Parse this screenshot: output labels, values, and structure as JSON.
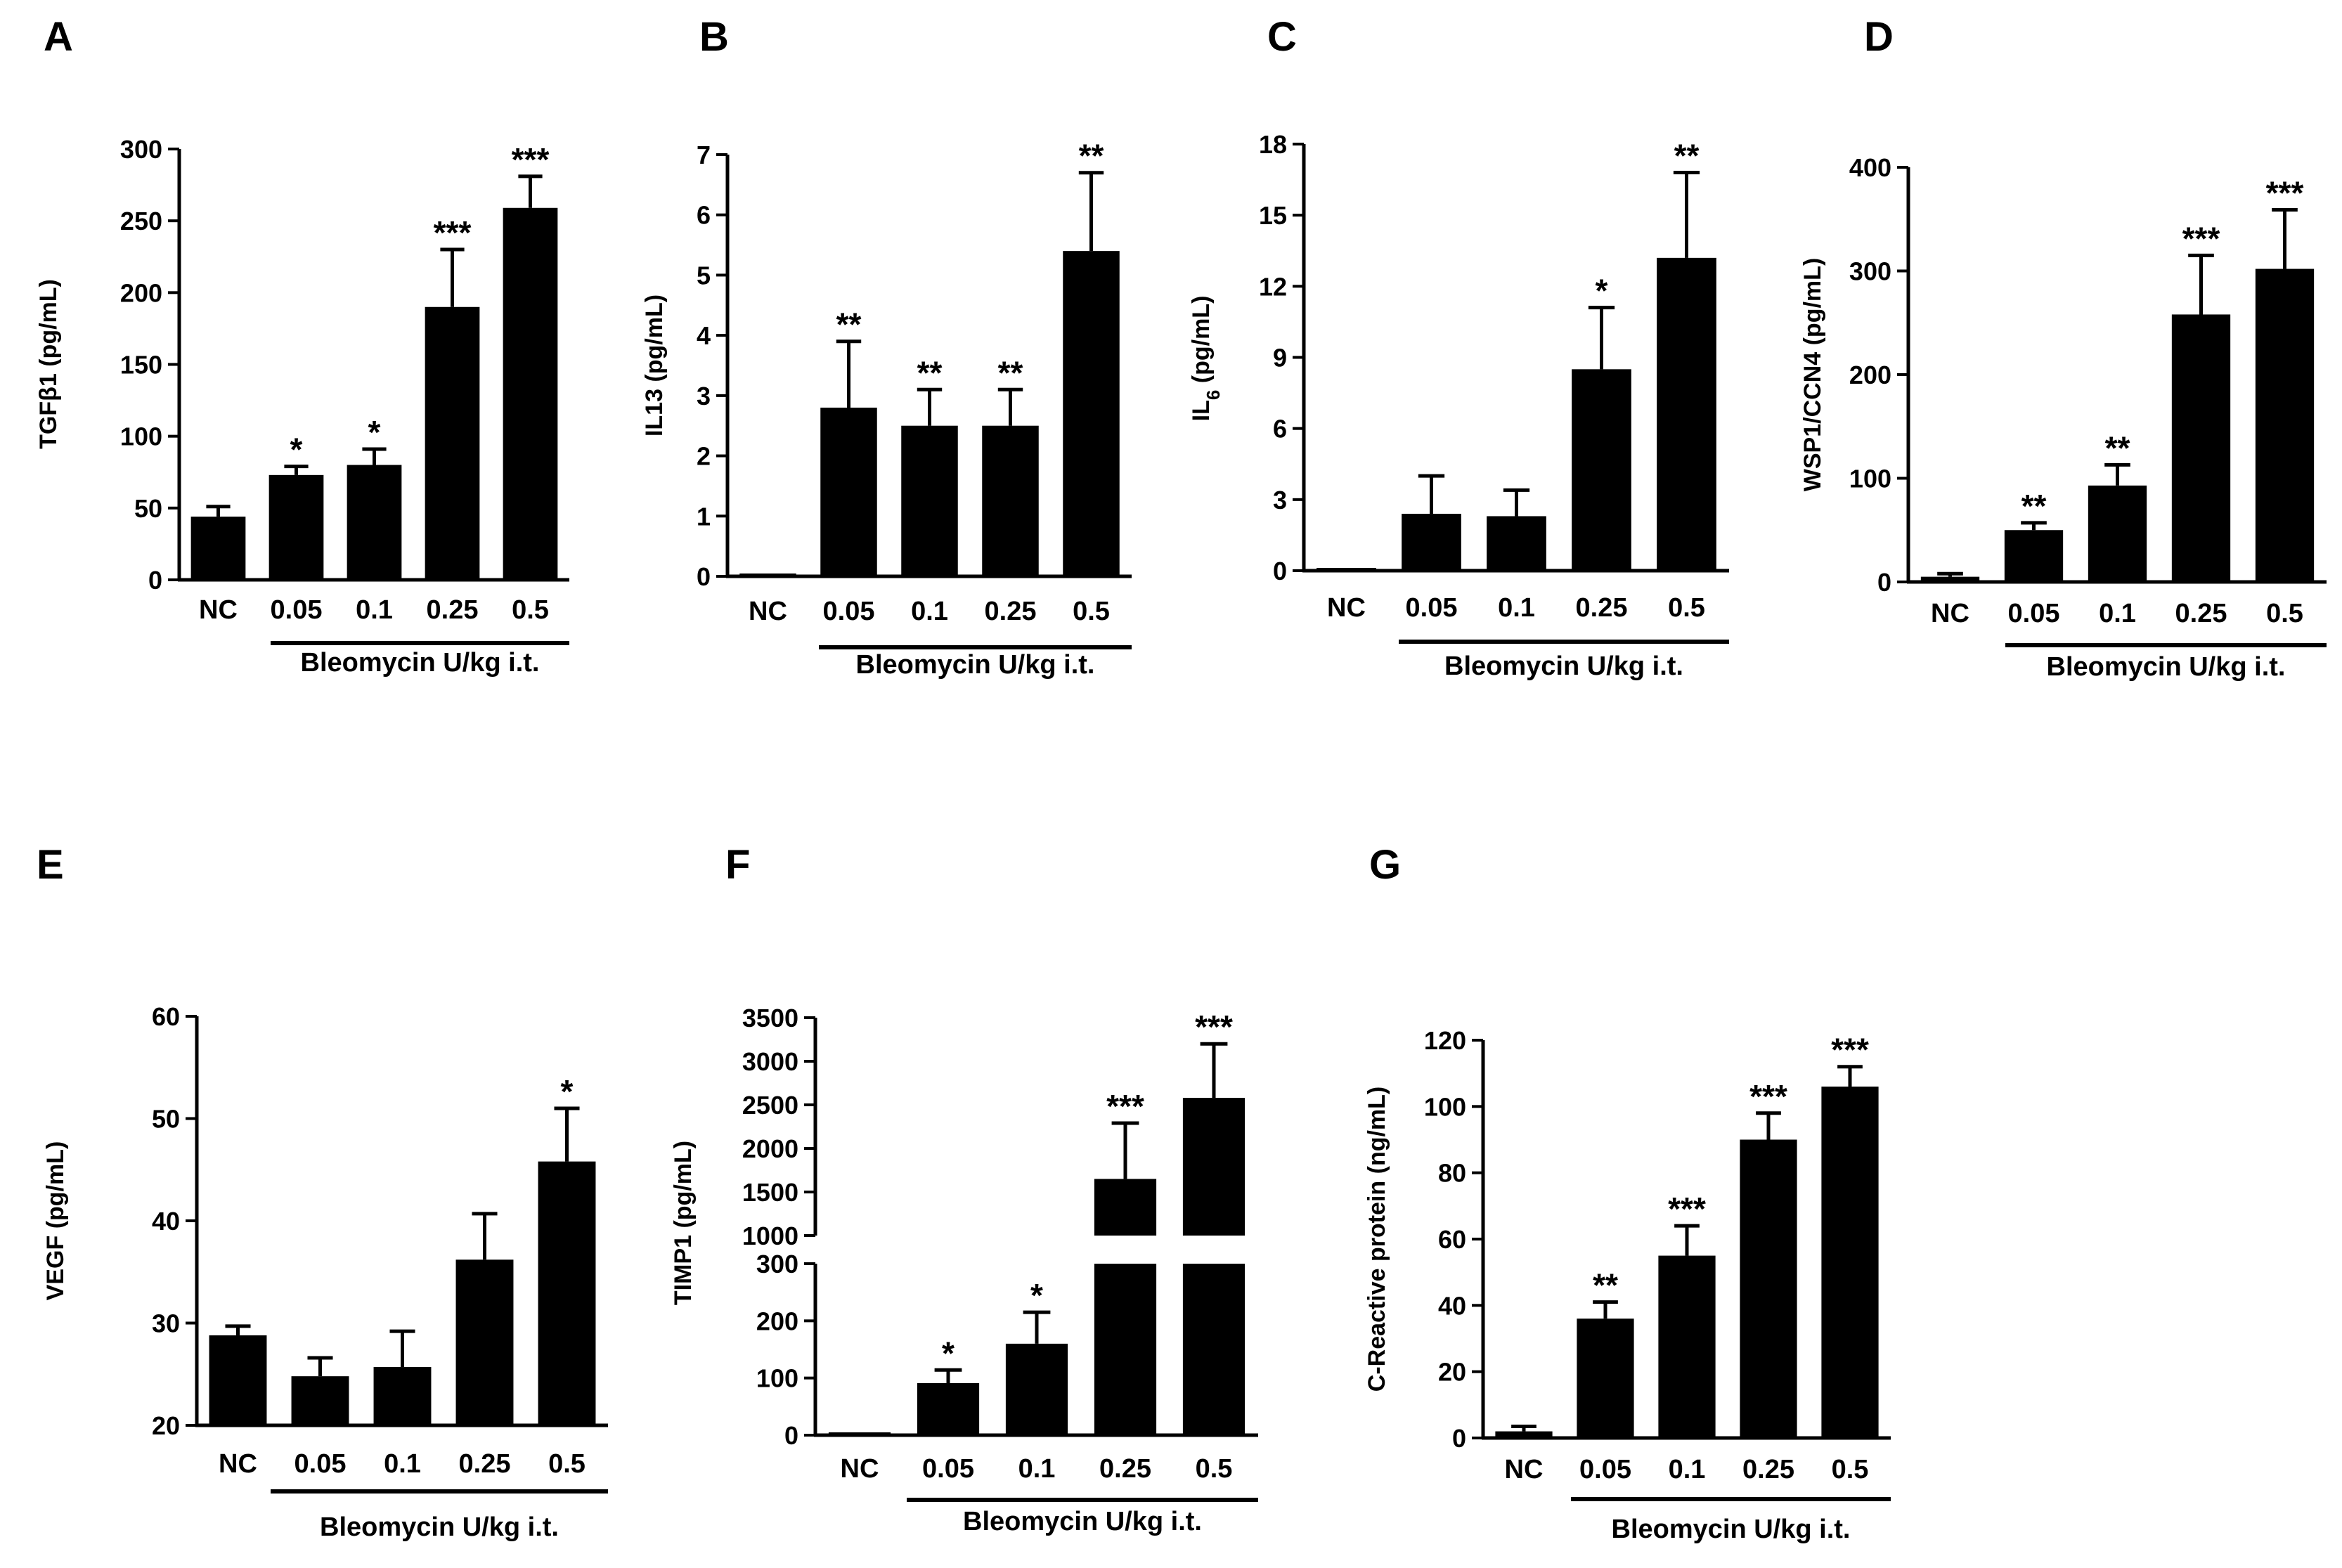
{
  "figure": {
    "bg_color": "#ffffff",
    "bar_color": "#000000"
  },
  "chart_data": [
    {
      "panel": "A",
      "type": "bar",
      "title": "",
      "ylabel": "TGFβ1  (pg/mL)",
      "xlabel": "",
      "group_label": "Bleomycin U/kg i.t.",
      "categories": [
        "NC",
        "0.05",
        "0.1",
        "0.25",
        "0.5"
      ],
      "values": [
        44,
        73,
        80,
        190,
        259
      ],
      "errors": [
        7,
        6,
        11,
        40,
        22
      ],
      "significance": [
        "",
        "*",
        "*",
        "***",
        "***"
      ],
      "ylim": [
        0,
        300
      ],
      "yticks": [
        0,
        50,
        100,
        150,
        200,
        250,
        300
      ],
      "ytick_labels": [
        "0",
        "50",
        "100",
        "150",
        "200",
        "250",
        "300"
      ]
    },
    {
      "panel": "B",
      "type": "bar",
      "title": "",
      "ylabel": "IL13  (pg/mL)",
      "xlabel": "",
      "group_label": "Bleomycin U/kg i.t.",
      "categories": [
        "NC",
        "0.05",
        "0.1",
        "0.25",
        "0.5"
      ],
      "values": [
        0,
        2.8,
        2.5,
        2.5,
        5.4
      ],
      "errors": [
        0,
        1.1,
        0.6,
        0.6,
        1.3
      ],
      "significance": [
        "",
        "**",
        "**",
        "**",
        "**"
      ],
      "ylim": [
        0,
        7
      ],
      "yticks": [
        0,
        1,
        2,
        3,
        4,
        5,
        6,
        7
      ],
      "ytick_labels": [
        "0",
        "1",
        "2",
        "3",
        "4",
        "5",
        "6",
        "7"
      ]
    },
    {
      "panel": "C",
      "type": "bar",
      "title": "",
      "ylabel_main": "IL",
      "ylabel_sub": "6",
      "ylabel_rest": " (pg/mL)",
      "xlabel": "",
      "group_label": "Bleomycin U/kg i.t.",
      "categories": [
        "NC",
        "0.05",
        "0.1",
        "0.25",
        "0.5"
      ],
      "values": [
        0,
        2.4,
        2.3,
        8.5,
        13.2
      ],
      "errors": [
        0,
        1.6,
        1.1,
        2.6,
        3.6
      ],
      "significance": [
        "",
        "",
        "",
        "*",
        "**"
      ],
      "ylim": [
        0,
        18
      ],
      "yticks": [
        0,
        3,
        6,
        9,
        12,
        15,
        18
      ],
      "ytick_labels": [
        "0",
        "3",
        "6",
        "9",
        "12",
        "15",
        "18"
      ]
    },
    {
      "panel": "D",
      "type": "bar",
      "title": "",
      "ylabel": "WSP1/CCN4  (pg/mL)",
      "xlabel": "",
      "group_label": "Bleomycin U/kg i.t.",
      "categories": [
        "NC",
        "0.05",
        "0.1",
        "0.25",
        "0.5"
      ],
      "values": [
        5,
        50,
        93,
        258,
        302
      ],
      "errors": [
        3,
        7,
        20,
        57,
        57
      ],
      "significance": [
        "",
        "**",
        "**",
        "***",
        "***"
      ],
      "ylim": [
        0,
        400
      ],
      "yticks": [
        0,
        100,
        200,
        300,
        400
      ],
      "ytick_labels": [
        "0",
        "100",
        "200",
        "300",
        "400"
      ]
    },
    {
      "panel": "E",
      "type": "bar",
      "title": "",
      "ylabel": "VEGF  (pg/mL)",
      "xlabel": "",
      "group_label": "Bleomycin U/kg i.t.",
      "categories": [
        "NC",
        "0.05",
        "0.1",
        "0.25",
        "0.5"
      ],
      "values": [
        28.8,
        24.8,
        25.7,
        36.2,
        45.8
      ],
      "errors": [
        0.9,
        1.8,
        3.5,
        4.5,
        5.2
      ],
      "significance": [
        "",
        "",
        "",
        "",
        "*"
      ],
      "ylim": [
        20,
        60
      ],
      "yticks": [
        20,
        30,
        40,
        50,
        60
      ],
      "ytick_labels": [
        "20",
        "30",
        "40",
        "50",
        "60"
      ]
    },
    {
      "panel": "F",
      "type": "bar",
      "title": "",
      "ylabel": "TIMP1  (pg/mL)",
      "xlabel": "",
      "group_label": "Bleomycin U/kg i.t.",
      "broken_axis": true,
      "lower_range": [
        0,
        300
      ],
      "upper_range": [
        1000,
        3500
      ],
      "categories": [
        "NC",
        "0.05",
        "0.1",
        "0.25",
        "0.5"
      ],
      "values": [
        0,
        91,
        160,
        1650,
        2580
      ],
      "errors": [
        0,
        23,
        55,
        640,
        620
      ],
      "significance": [
        "",
        "*",
        "*",
        "***",
        "***"
      ],
      "yticks_lower": [
        0,
        100,
        200,
        300
      ],
      "ytick_labels_lower": [
        "0",
        "100",
        "200",
        "300"
      ],
      "yticks_upper": [
        1000,
        1500,
        2000,
        2500,
        3000,
        3500
      ],
      "ytick_labels_upper": [
        "1000",
        "1500",
        "2000",
        "2500",
        "3000",
        "3500"
      ]
    },
    {
      "panel": "G",
      "type": "bar",
      "title": "",
      "ylabel": "C-Reactive protein  (ng/mL)",
      "xlabel": "",
      "group_label": "Bleomycin U/kg i.t.",
      "categories": [
        "NC",
        "0.05",
        "0.1",
        "0.25",
        "0.5"
      ],
      "values": [
        2,
        36,
        55,
        90,
        106
      ],
      "errors": [
        1.5,
        5,
        9,
        8,
        6
      ],
      "significance": [
        "",
        "**",
        "***",
        "***",
        "***"
      ],
      "ylim": [
        0,
        120
      ],
      "yticks": [
        0,
        20,
        40,
        60,
        80,
        100,
        120
      ],
      "ytick_labels": [
        "0",
        "20",
        "40",
        "60",
        "80",
        "100",
        "120"
      ]
    }
  ]
}
